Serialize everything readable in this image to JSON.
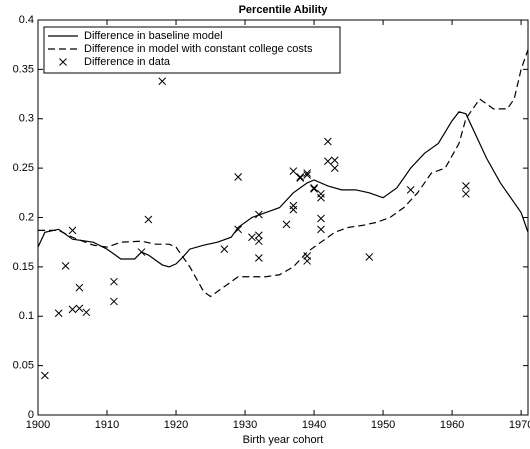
{
  "chart_data": {
    "type": "line",
    "title": "Percentile Ability",
    "xlabel": "Birth year cohort",
    "xlim": [
      1900,
      1971
    ],
    "xticks": [
      1900,
      1910,
      1920,
      1930,
      1940,
      1950,
      1960,
      1970
    ],
    "ylim": [
      0,
      0.4
    ],
    "yticks": [
      0,
      0.05,
      0.1,
      0.15,
      0.2,
      0.25,
      0.3,
      0.35,
      0.4
    ],
    "legend": "upper-left",
    "series": [
      {
        "name": "Difference in baseline model",
        "color": "#000000",
        "style": "solid",
        "x": [
          1900,
          1901,
          1903,
          1905,
          1908,
          1910,
          1912,
          1914,
          1915,
          1916,
          1918,
          1919,
          1920,
          1921,
          1922,
          1924,
          1926,
          1928,
          1929,
          1931,
          1933,
          1935,
          1937,
          1939,
          1940,
          1942,
          1944,
          1946,
          1948,
          1950,
          1952,
          1954,
          1956,
          1958,
          1960,
          1961,
          1962,
          1963,
          1965,
          1967,
          1969,
          1970,
          1971
        ],
        "values": [
          0.17,
          0.185,
          0.188,
          0.178,
          0.175,
          0.168,
          0.158,
          0.158,
          0.165,
          0.162,
          0.152,
          0.15,
          0.153,
          0.16,
          0.168,
          0.172,
          0.175,
          0.18,
          0.19,
          0.2,
          0.205,
          0.21,
          0.225,
          0.235,
          0.238,
          0.232,
          0.228,
          0.228,
          0.225,
          0.22,
          0.23,
          0.25,
          0.265,
          0.275,
          0.298,
          0.307,
          0.305,
          0.29,
          0.26,
          0.235,
          0.215,
          0.205,
          0.185
        ]
      },
      {
        "name": "Difference in model with constant college costs",
        "color": "#000000",
        "style": "dashed",
        "x": [
          1900,
          1903,
          1905,
          1908,
          1910,
          1912,
          1915,
          1917,
          1919,
          1920,
          1922,
          1924,
          1925,
          1927,
          1929,
          1931,
          1933,
          1935,
          1937,
          1939,
          1941,
          1943,
          1945,
          1947,
          1949,
          1951,
          1953,
          1955,
          1957,
          1959,
          1961,
          1962,
          1963,
          1964,
          1965,
          1966,
          1968,
          1969,
          1970,
          1971
        ],
        "values": [
          0.187,
          0.187,
          0.18,
          0.172,
          0.17,
          0.175,
          0.176,
          0.173,
          0.173,
          0.17,
          0.15,
          0.125,
          0.12,
          0.13,
          0.14,
          0.14,
          0.14,
          0.142,
          0.15,
          0.165,
          0.175,
          0.185,
          0.19,
          0.192,
          0.195,
          0.2,
          0.21,
          0.225,
          0.245,
          0.25,
          0.275,
          0.3,
          0.31,
          0.32,
          0.315,
          0.31,
          0.31,
          0.32,
          0.35,
          0.37
        ]
      },
      {
        "name": "Difference in data",
        "color": "#000000",
        "style": "marker",
        "x": [
          1901,
          1903,
          1904,
          1905,
          1905,
          1906,
          1906,
          1907,
          1911,
          1911,
          1915,
          1916,
          1918,
          1929,
          1929,
          1927,
          1931,
          1932,
          1932,
          1932,
          1932,
          1936,
          1937,
          1937,
          1937,
          1938,
          1938,
          1939,
          1939,
          1939,
          1939,
          1940,
          1940,
          1941,
          1941,
          1941,
          1941,
          1942,
          1942,
          1943,
          1943,
          1948,
          1954,
          1962,
          1962
        ],
        "values": [
          0.04,
          0.103,
          0.151,
          0.107,
          0.187,
          0.108,
          0.129,
          0.104,
          0.135,
          0.115,
          0.165,
          0.198,
          0.338,
          0.241,
          0.188,
          0.168,
          0.18,
          0.203,
          0.182,
          0.176,
          0.159,
          0.193,
          0.247,
          0.212,
          0.208,
          0.241,
          0.24,
          0.243,
          0.245,
          0.161,
          0.156,
          0.229,
          0.23,
          0.22,
          0.224,
          0.199,
          0.188,
          0.277,
          0.257,
          0.258,
          0.25,
          0.16,
          0.228,
          0.232,
          0.224
        ]
      }
    ]
  }
}
